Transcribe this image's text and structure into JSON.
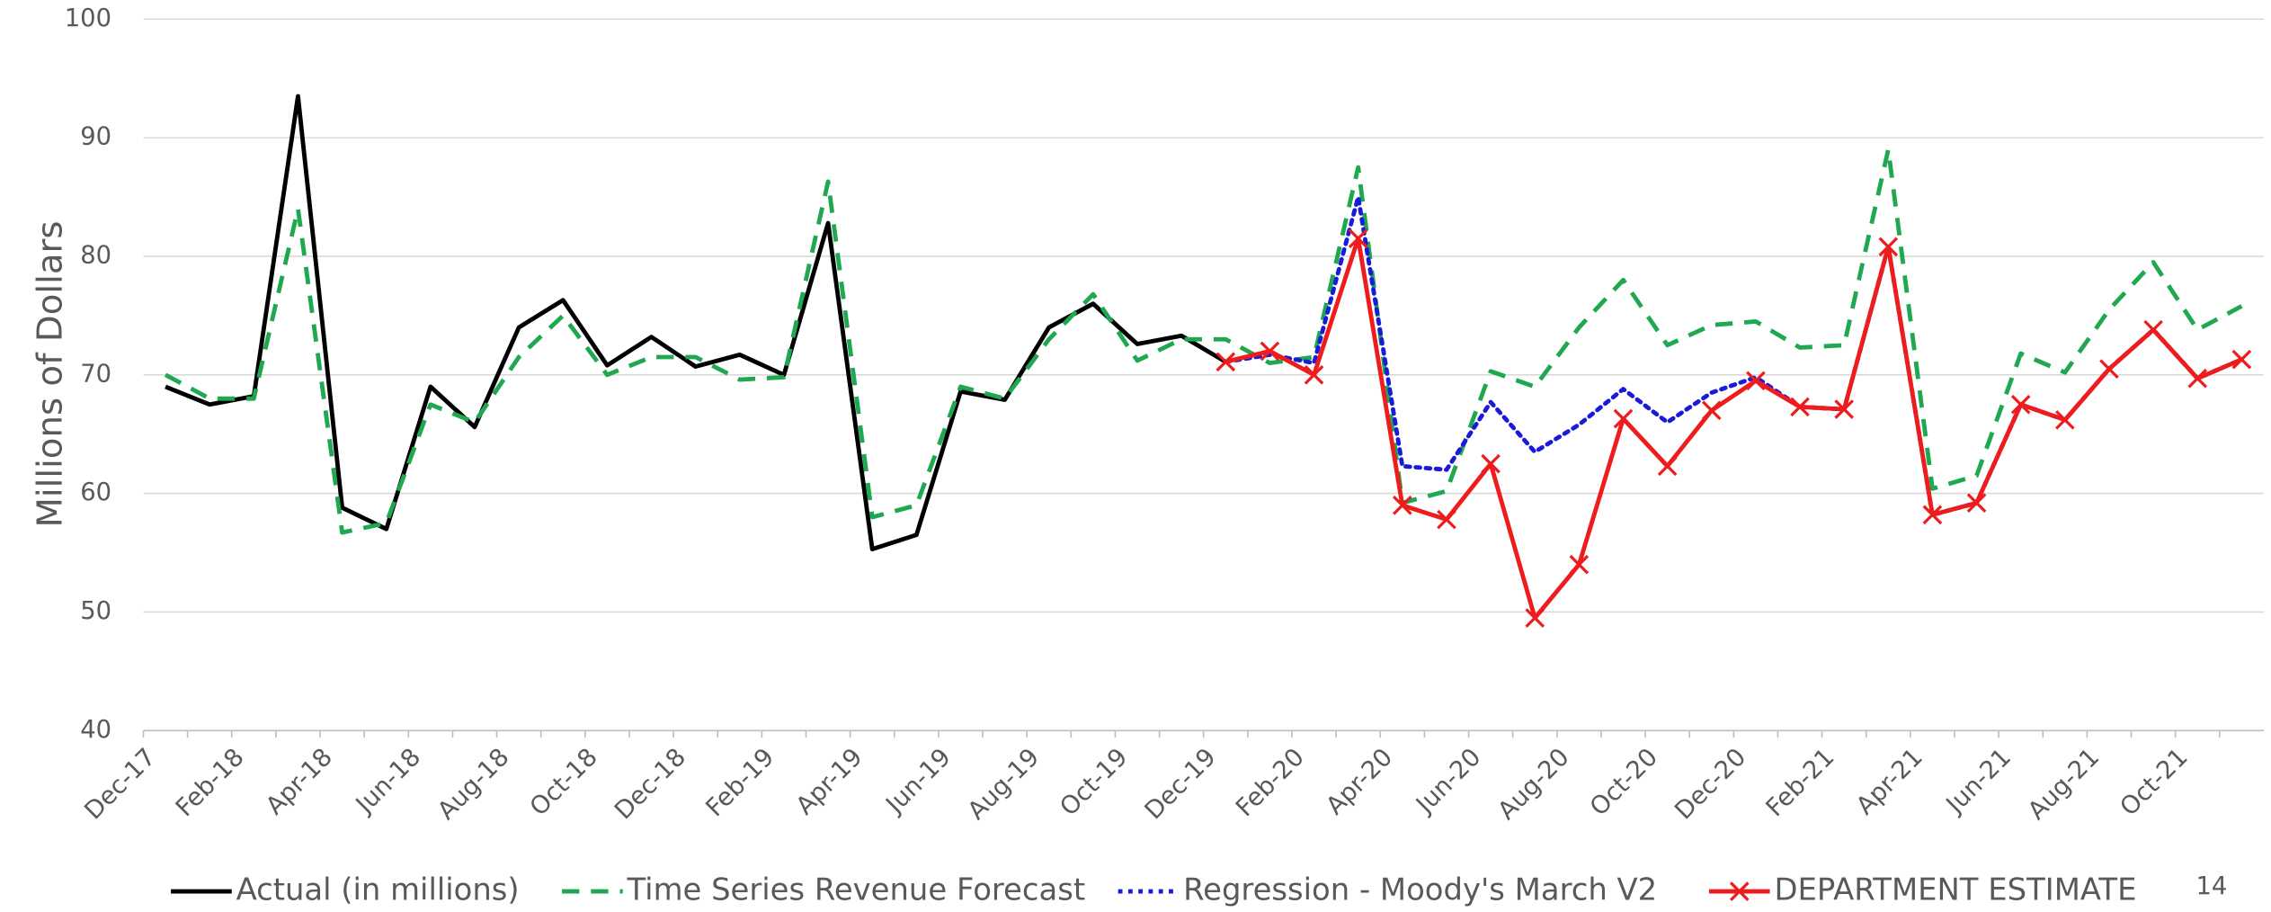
{
  "chart_data": {
    "type": "line",
    "y_label": "Millions of Dollars",
    "categories": [
      "Dec-17",
      null,
      "Feb-18",
      null,
      "Apr-18",
      null,
      "Jun-18",
      null,
      "Aug-18",
      null,
      "Oct-18",
      null,
      "Dec-18",
      null,
      "Feb-19",
      null,
      "Apr-19",
      null,
      "Jun-19",
      null,
      "Aug-19",
      null,
      "Oct-19",
      null,
      "Dec-19",
      null,
      "Feb-20",
      null,
      "Apr-20",
      null,
      "Jun-20",
      null,
      "Aug-20",
      null,
      "Oct-20",
      null,
      "Dec-20",
      null,
      "Feb-21",
      null,
      "Apr-21",
      null,
      "Jun-21",
      null,
      "Aug-21",
      null,
      "Oct-21",
      null
    ],
    "ylim": [
      40,
      100
    ],
    "yticks": [
      40,
      50,
      60,
      70,
      80,
      90,
      100
    ],
    "grid": true,
    "series": [
      {
        "name": "Actual (in millions)",
        "color": "#000000",
        "line_style": "solid",
        "values": [
          69,
          67.5,
          68.2,
          93.5,
          58.8,
          57,
          69,
          65.6,
          74,
          76.3,
          70.8,
          73.2,
          70.7,
          71.7,
          70,
          82.8,
          55.3,
          56.5,
          68.6,
          67.9,
          74,
          76,
          72.6,
          73.3,
          71.1,
          null,
          null,
          null,
          null,
          null,
          null,
          null,
          null,
          null,
          null,
          null,
          null,
          null,
          null,
          null,
          null,
          null,
          null,
          null,
          null,
          null,
          null,
          null
        ]
      },
      {
        "name": "Time Series Revenue Forecast",
        "color": "#1fa84f",
        "line_style": "dashed",
        "values": [
          70,
          68,
          68,
          84,
          56.7,
          57.5,
          67.5,
          66,
          71.5,
          75,
          70,
          71.5,
          71.5,
          69.6,
          69.8,
          86.3,
          58,
          59,
          69,
          68,
          73,
          76.8,
          71.2,
          73,
          73,
          71,
          71.5,
          87.5,
          59.2,
          60.2,
          70.3,
          69,
          74,
          78,
          72.5,
          74.2,
          74.5,
          72.3,
          72.5,
          89,
          60.4,
          61.5,
          71.8,
          70.2,
          75.5,
          79.5,
          73.8,
          75.8
        ]
      },
      {
        "name": "Regression - Moody's March V2",
        "color": "#1a1adb",
        "line_style": "dotted",
        "values": [
          null,
          null,
          null,
          null,
          null,
          null,
          null,
          null,
          null,
          null,
          null,
          null,
          null,
          null,
          null,
          null,
          null,
          null,
          null,
          null,
          null,
          null,
          null,
          null,
          71.1,
          71.7,
          71,
          85,
          62.3,
          62,
          67.7,
          63.5,
          65.8,
          68.8,
          66,
          68.5,
          69.8,
          67.3,
          67.1,
          80.8,
          58.2,
          59.2,
          67.5,
          66.2,
          70.5,
          73.8,
          69.7,
          71.3
        ]
      },
      {
        "name": "DEPARTMENT ESTIMATE",
        "color": "#ee1c1c",
        "line_style": "solid",
        "marker": "x",
        "values": [
          null,
          null,
          null,
          null,
          null,
          null,
          null,
          null,
          null,
          null,
          null,
          null,
          null,
          null,
          null,
          null,
          null,
          null,
          null,
          null,
          null,
          null,
          null,
          null,
          71.1,
          72,
          70,
          81.5,
          59,
          57.8,
          62.5,
          49.5,
          54,
          66.3,
          62.3,
          67,
          69.5,
          67.3,
          67.1,
          80.8,
          58.2,
          59.2,
          67.5,
          66.2,
          70.5,
          73.8,
          69.7,
          71.3
        ]
      }
    ]
  },
  "page_number": "14"
}
